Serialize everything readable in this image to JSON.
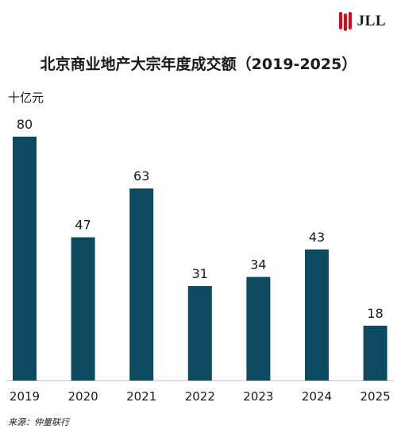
{
  "brand": {
    "name": "JLL",
    "logo_color": "#e30613"
  },
  "chart_data": {
    "type": "bar",
    "title": "北京商业地产大宗年度成交额（2019-2025）",
    "ylabel": "十亿元",
    "categories": [
      "2019",
      "2020",
      "2021",
      "2022",
      "2023",
      "2024",
      "2025"
    ],
    "values": [
      80,
      47,
      63,
      31,
      34,
      43,
      18
    ],
    "ylim": [
      0,
      80
    ],
    "grid": false,
    "bar_color": "#0d4a5f"
  },
  "source": "来源：仲量联行"
}
